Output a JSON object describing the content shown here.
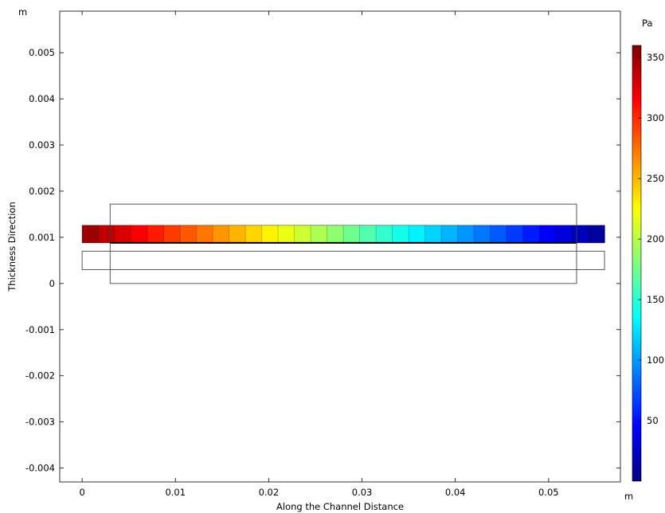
{
  "chart_data": {
    "type": "heatmap",
    "xlabel": "Along the Channel Distance",
    "ylabel": "Thickness Direction",
    "x_unit": "m",
    "y_unit": "m",
    "xlim": [
      -0.0024,
      0.0577
    ],
    "ylim": [
      -0.0043,
      0.0059
    ],
    "x_ticks": [
      0,
      0.01,
      0.02,
      0.03,
      0.04,
      0.05
    ],
    "x_tick_labels": [
      "0",
      "0.01",
      "0.02",
      "0.03",
      "0.04",
      "0.05"
    ],
    "y_ticks": [
      0.005,
      0.004,
      0.003,
      0.002,
      0.001,
      0,
      -0.001,
      -0.002,
      -0.003,
      -0.004
    ],
    "y_tick_labels": [
      "0.005",
      "0.004",
      "0.003",
      "0.002",
      "0.001",
      "0",
      "-0.001",
      "-0.002",
      "-0.003",
      "-0.004"
    ],
    "colorbar": {
      "unit": "Pa",
      "min": 0,
      "max": 360,
      "ticks": [
        350,
        300,
        250,
        200,
        150,
        100,
        50
      ],
      "tick_labels": [
        "350",
        "300",
        "250",
        "200",
        "150",
        "100",
        "50"
      ],
      "colormap": [
        "#00007f",
        "#0000ff",
        "#007fff",
        "#00ffff",
        "#7fff7f",
        "#ffff00",
        "#ff7f00",
        "#ff0000",
        "#7f0000"
      ]
    },
    "outline_rectangles": [
      {
        "x0": 0.003,
        "x1": 0.053,
        "y0": 0.0,
        "y1": 0.00172
      },
      {
        "x0": 0.0,
        "x1": 0.056,
        "y0": 0.0003,
        "y1": 0.0007
      }
    ],
    "field_band": {
      "x0": 0.0,
      "x1": 0.056,
      "y0": 0.00088,
      "y1": 0.00126,
      "inner_x0": 0.003,
      "inner_x1": 0.053,
      "pressure_inlet": 355,
      "pressure_outlet": 5,
      "num_cells": 32
    }
  }
}
